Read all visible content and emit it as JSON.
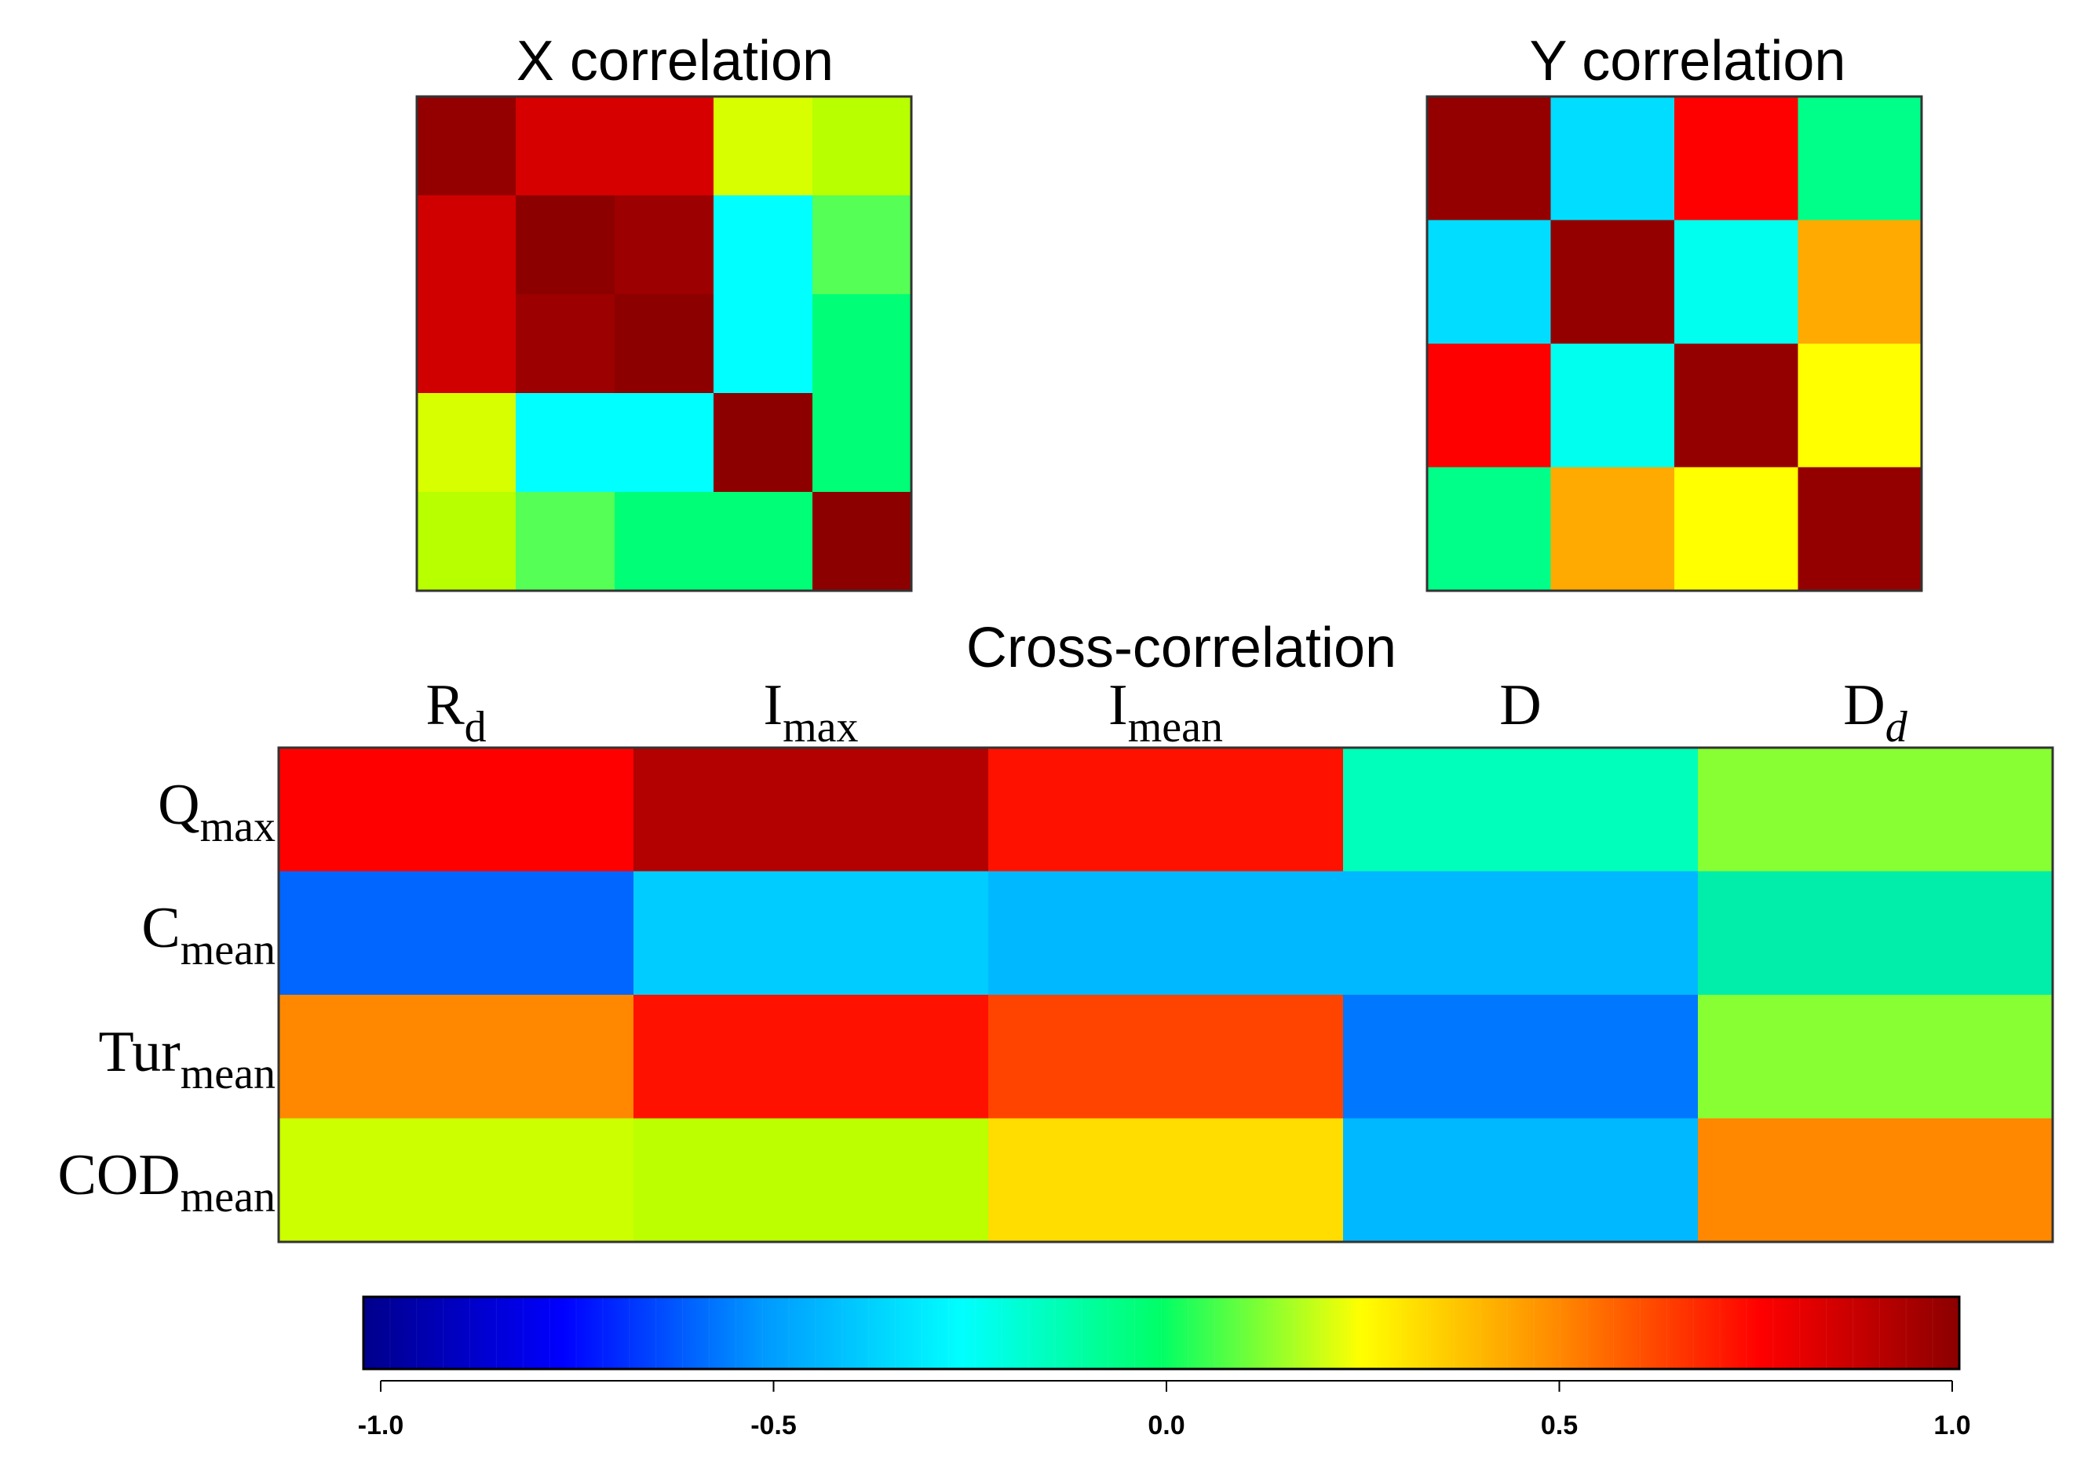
{
  "chart_data": [
    {
      "type": "heatmap",
      "title": "X correlation",
      "size": 5,
      "colors": [
        [
          "#940000",
          "#d60000",
          "#d60000",
          "#d8ff00",
          "#b8ff00"
        ],
        [
          "#d10000",
          "#8c0000",
          "#9d0000",
          "#00ffff",
          "#55ff55"
        ],
        [
          "#d10000",
          "#9d0000",
          "#8c0000",
          "#00ffff",
          "#00ff77"
        ],
        [
          "#d8ff00",
          "#00ffff",
          "#00ffff",
          "#8c0000",
          "#00ff77"
        ],
        [
          "#b8ff00",
          "#55ff55",
          "#00ff77",
          "#00ff77",
          "#8c0000"
        ]
      ]
    },
    {
      "type": "heatmap",
      "title": "Y correlation",
      "size": 4,
      "colors": [
        [
          "#940000",
          "#00ddff",
          "#ff0000",
          "#00ff88"
        ],
        [
          "#00ddff",
          "#940000",
          "#00ffee",
          "#ffaa00"
        ],
        [
          "#ff0000",
          "#00ffee",
          "#940000",
          "#ffff00"
        ],
        [
          "#00ff88",
          "#ffaa00",
          "#ffff00",
          "#940000"
        ]
      ]
    },
    {
      "type": "heatmap",
      "title": "Cross-correlation",
      "columns": [
        {
          "base": "R",
          "sub": "d",
          "italic_sub": false
        },
        {
          "base": "I",
          "sub": "max",
          "italic_sub": false
        },
        {
          "base": "I",
          "sub": "mean",
          "italic_sub": false
        },
        {
          "base": "D",
          "sub": "",
          "italic_sub": false
        },
        {
          "base": "D",
          "sub": "d",
          "italic_sub": true
        }
      ],
      "rows": [
        {
          "base": "Q",
          "sub": "max"
        },
        {
          "base": "C",
          "sub": "mean"
        },
        {
          "base": "Tur",
          "sub": "mean"
        },
        {
          "base": "COD",
          "sub": "mean"
        }
      ],
      "colors": [
        [
          "#ff0000",
          "#b30000",
          "#ff1100",
          "#00ffbb",
          "#88ff33"
        ],
        [
          "#0066ff",
          "#00ccff",
          "#00b8ff",
          "#00b8ff",
          "#00eeaa"
        ],
        [
          "#ff8800",
          "#ff1100",
          "#ff4400",
          "#0077ff",
          "#88ff33"
        ],
        [
          "#ccff00",
          "#bbff00",
          "#ffdd00",
          "#00b8ff",
          "#ff8800"
        ]
      ]
    }
  ],
  "colorbar": {
    "min": -1.0,
    "max": 1.0,
    "ticks": [
      "-1.0",
      "-0.5",
      "0.0",
      "0.5",
      "1.0"
    ],
    "tick_values": [
      -1.0,
      -0.5,
      0.0,
      0.5,
      1.0
    ],
    "stops": [
      "#00008b",
      "#0000ff",
      "#0099ff",
      "#00ffff",
      "#00ff66",
      "#ffff00",
      "#ff8800",
      "#ff0000",
      "#8b0000"
    ]
  }
}
